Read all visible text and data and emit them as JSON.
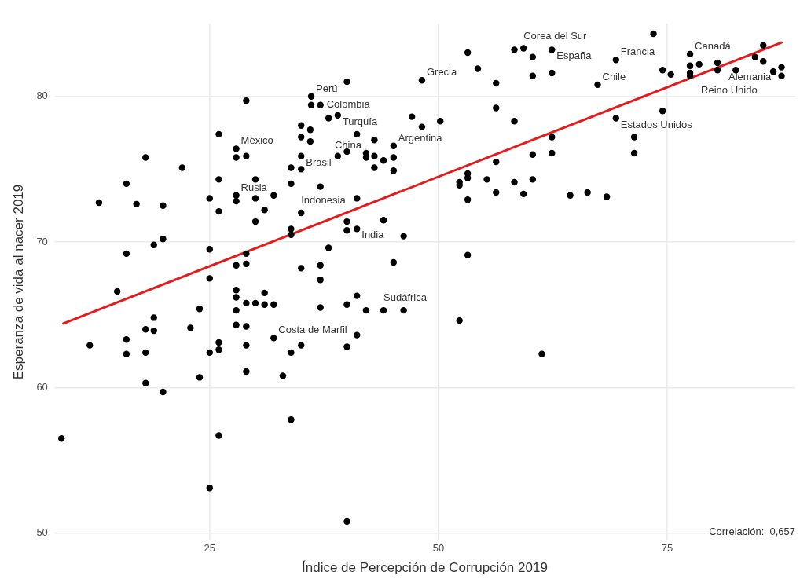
{
  "chart_data": {
    "type": "scatter",
    "xlabel": "Índice de Percepción de Corrupción 2019",
    "ylabel": "Esperanza de vida al nacer 2019",
    "xlim": [
      8,
      89
    ],
    "xticks": [
      25,
      50,
      75
    ],
    "ylim": [
      49.5,
      85
    ],
    "yticks": [
      50,
      60,
      70,
      80
    ],
    "grid": true,
    "series": [
      {
        "marker": "circle",
        "color": "#000000",
        "x": [
          8.8,
          11.9,
          12.9,
          14.9,
          15.9,
          15.9,
          15.9,
          15.9,
          17.0,
          18.0,
          18.0,
          18.0,
          18.0,
          18.9,
          18.9,
          18.9,
          19.9,
          19.9,
          19.9,
          22.0,
          22.9,
          23.9,
          23.9,
          25,
          25,
          25,
          25,
          25,
          26,
          26,
          26,
          26,
          26,
          26,
          27.9,
          27.9,
          27.9,
          27.9,
          27.9,
          27.9,
          27.9,
          27.9,
          27.9,
          29,
          29,
          29,
          29,
          29,
          29,
          29,
          29,
          30,
          30,
          30,
          30,
          31,
          31,
          31,
          32,
          32,
          32,
          33,
          33.9,
          33.9,
          33.9,
          33.9,
          33.9,
          33.9,
          35,
          35,
          35,
          35,
          35,
          35,
          35,
          36.1,
          36,
          36,
          37.1,
          36.1,
          37.1,
          37.1,
          37.1,
          37.1,
          38,
          38,
          39,
          39,
          40,
          40,
          40,
          40,
          40,
          40,
          40,
          41.1,
          41.1,
          41.1,
          41.1,
          41.1,
          42.1,
          42.1,
          42.1,
          43,
          43,
          43,
          44,
          44,
          44,
          45.1,
          45.1,
          45.1,
          45.1,
          46.2,
          46.2,
          47.1,
          48.2,
          48.2,
          50.2,
          52.3,
          52.3,
          52.3,
          53.2,
          53.2,
          53.2,
          53.2,
          53.2,
          54.3,
          55.3,
          56.3,
          56.3,
          56.3,
          56.3,
          58.3,
          59.3,
          58.3,
          58.3,
          59.3,
          60.3,
          60.3,
          60.3,
          60.3,
          61.3,
          62.4,
          62.4,
          62.4,
          62.4,
          64.4,
          66.3,
          67.4,
          68.4,
          69.4,
          69.4,
          71.4,
          71.4,
          73.5,
          74.5,
          74.5,
          75.4,
          77.5,
          77.5,
          77.5,
          77.5,
          78.5,
          80.5,
          80.5,
          82.5,
          84.6,
          85.5,
          85.5,
          86.6,
          87.5,
          87.5
        ],
        "values": [
          56.5,
          62.9,
          72.7,
          66.6,
          74.0,
          69.2,
          63.3,
          62.3,
          72.6,
          75.8,
          64.0,
          62.4,
          60.3,
          64.8,
          63.9,
          69.8,
          72.5,
          70.2,
          59.7,
          75.1,
          64.1,
          65.4,
          60.7,
          73.0,
          69.5,
          67.5,
          62.4,
          53.1,
          77.4,
          74.3,
          72.1,
          63.1,
          62.6,
          56.7,
          76.4,
          75.8,
          73.2,
          72.8,
          68.4,
          66.7,
          66.2,
          65.3,
          64.3,
          79.7,
          75.9,
          69.2,
          68.5,
          65.8,
          64.2,
          62.9,
          61.1,
          74.3,
          73.0,
          71.4,
          65.8,
          72.2,
          66.5,
          65.7,
          73.2,
          65.7,
          63.4,
          60.8,
          75.1,
          74.0,
          70.9,
          70.5,
          62.4,
          57.8,
          78.0,
          77.2,
          75.9,
          75.0,
          72.0,
          68.2,
          62.9,
          80.0,
          77.7,
          76.9,
          79.4,
          79.4,
          73.8,
          68.4,
          67.4,
          65.5,
          78.5,
          69.6,
          78.7,
          75.9,
          81.0,
          76.2,
          71.4,
          70.8,
          65.7,
          62.8,
          50.8,
          77.4,
          73.0,
          70.9,
          66.3,
          63.6,
          76.1,
          75.8,
          65.3,
          77.0,
          75.9,
          75.1,
          75.6,
          71.5,
          65.3,
          76.6,
          75.8,
          74.9,
          68.6,
          70.4,
          65.3,
          78.6,
          81.1,
          77.9,
          78.3,
          64.6,
          74.1,
          73.9,
          83.0,
          74.7,
          74.4,
          72.9,
          69.1,
          81.9,
          74.3,
          80.9,
          79.2,
          75.5,
          73.4,
          83.2,
          83.3,
          78.3,
          74.1,
          73.3,
          82.7,
          81.4,
          76.0,
          74.3,
          62.3,
          83.2,
          81.6,
          77.2,
          76.1,
          73.2,
          73.4,
          80.8,
          73.1,
          82.5,
          78.5,
          77.2,
          76.1,
          84.3,
          79.0,
          81.8,
          81.5,
          82.9,
          82.1,
          81.6,
          81.4,
          82.2,
          82.3,
          81.8,
          81.8,
          82.7,
          83.5,
          82.4,
          81.7,
          82.0,
          81.4
        ]
      },
      {
        "type": "line",
        "marker": "none",
        "color": "#e8191c",
        "x": [
          9,
          87.5
        ],
        "values": [
          64.4,
          83.7
        ]
      }
    ],
    "annotations": [
      {
        "text": "Corea del Sur",
        "x": 59.3,
        "y": 83.3
      },
      {
        "text": "España",
        "x": 62.4,
        "y": 83.2
      },
      {
        "text": "Francia",
        "x": 69.4,
        "y": 82.5
      },
      {
        "text": "Canadá",
        "x": 77.5,
        "y": 82.9
      },
      {
        "text": "Alemania",
        "x": 80.5,
        "y": 82.3
      },
      {
        "text": "Chile",
        "x": 67.4,
        "y": 80.8
      },
      {
        "text": "Reino Unido",
        "x": 77.5,
        "y": 81.4
      },
      {
        "text": "Estados Unidos",
        "x": 69.4,
        "y": 78.5
      },
      {
        "text": "Grecia",
        "x": 48.2,
        "y": 81.1
      },
      {
        "text": "Perú",
        "x": 36.1,
        "y": 80.0
      },
      {
        "text": "Colombia",
        "x": 37.1,
        "y": 79.4
      },
      {
        "text": "Turquía",
        "x": 39,
        "y": 78.7
      },
      {
        "text": "México",
        "x": 27.9,
        "y": 76.4
      },
      {
        "text": "Brasil",
        "x": 35,
        "y": 75.9
      },
      {
        "text": "China",
        "x": 42.1,
        "y": 76.1
      },
      {
        "text": "Argentina",
        "x": 45.1,
        "y": 76.6
      },
      {
        "text": "Rusia",
        "x": 27.9,
        "y": 73.2
      },
      {
        "text": "Indonesia",
        "x": 35,
        "y": 72.0
      },
      {
        "text": "India",
        "x": 41.1,
        "y": 70.9
      },
      {
        "text": "Sudáfrica",
        "x": 44,
        "y": 65.3
      },
      {
        "text": "Costa de Marfil",
        "x": 32,
        "y": 63.4
      },
      "Correlación:  0,657"
    ]
  }
}
